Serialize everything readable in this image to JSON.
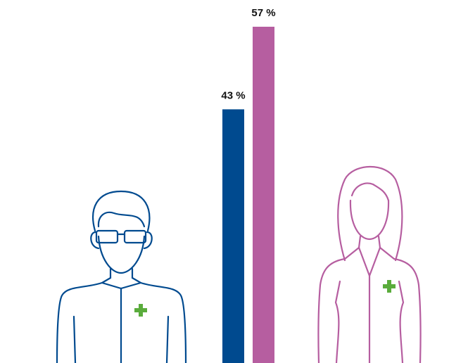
{
  "chart_data": {
    "type": "bar",
    "values": [
      43,
      57
    ],
    "value_labels": [
      "43 %",
      "57 %"
    ],
    "colors": [
      "#004a8f",
      "#b65ea0"
    ]
  }
}
